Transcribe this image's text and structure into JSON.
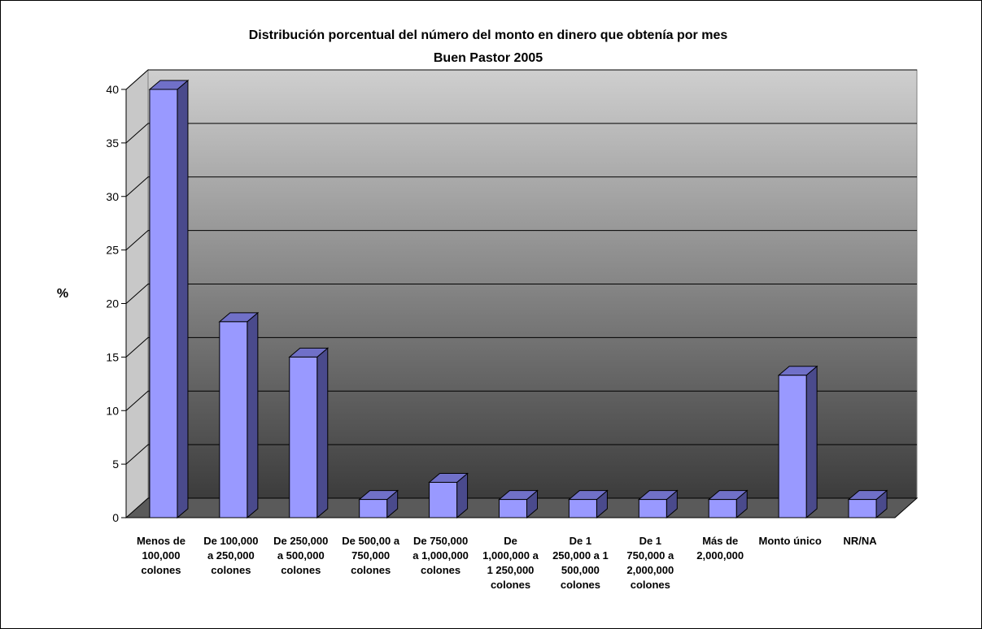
{
  "chart_data": {
    "type": "bar",
    "title": "Distribución porcentual del número del monto en dinero que obtenía por mes",
    "subtitle": "Buen Pastor 2005",
    "xlabel": "",
    "ylabel": "%",
    "ylim": [
      0,
      40
    ],
    "yticks": [
      "0",
      "5",
      "10",
      "15",
      "20",
      "25",
      "30",
      "35",
      "40"
    ],
    "grid": true,
    "style": "3d",
    "bar_color": "#9999ff",
    "categories": [
      [
        "Menos de",
        "100,000",
        "colones"
      ],
      [
        "De 100,000",
        "a 250,000",
        "colones"
      ],
      [
        "De 250,000",
        "a 500,000",
        "colones"
      ],
      [
        "De 500,00 a",
        "750,000",
        "colones"
      ],
      [
        "De 750,000",
        "a 1,000,000",
        "colones"
      ],
      [
        "De",
        "1,000,000 a",
        "1 250,000",
        "colones"
      ],
      [
        "De 1",
        "250,000 a 1",
        "500,000",
        "colones"
      ],
      [
        "De 1",
        "750,000 a",
        "2,000,000",
        "colones"
      ],
      [
        "Más de",
        "2,000,000"
      ],
      [
        "Monto único"
      ],
      [
        "NR/NA"
      ]
    ],
    "values": [
      40.0,
      18.3,
      15.0,
      1.7,
      3.3,
      1.7,
      1.7,
      1.7,
      1.7,
      13.3,
      1.7
    ]
  }
}
